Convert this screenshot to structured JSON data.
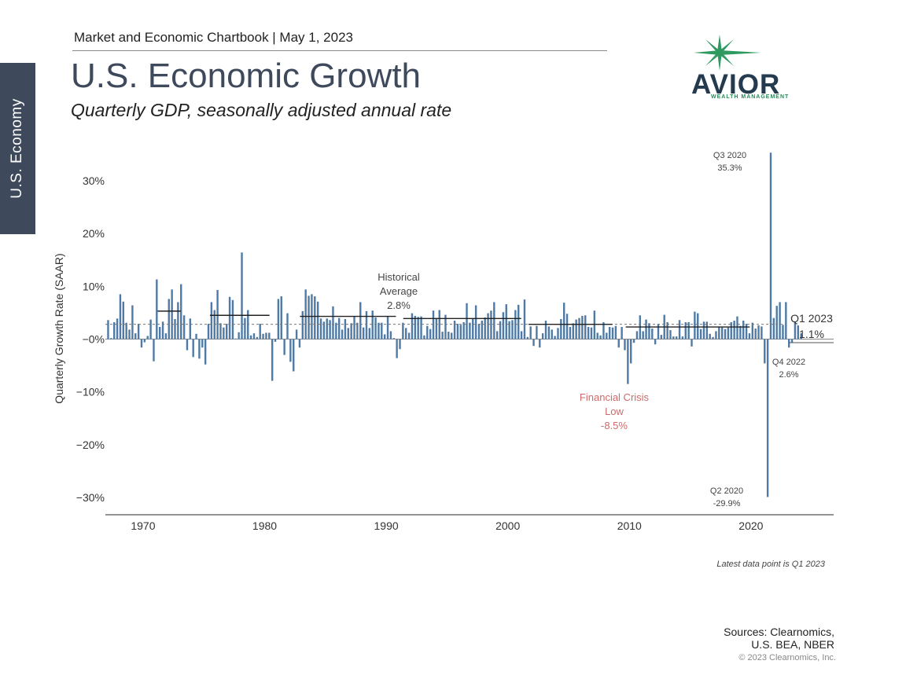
{
  "header": {
    "chartbook_line": "Market and Economic Chartbook | May 1, 2023",
    "title": "U.S. Economic Growth",
    "subtitle": "Quarterly GDP, seasonally adjusted annual rate"
  },
  "side_tab": {
    "label": "U.S. Economy"
  },
  "logo": {
    "word": "AVIOR",
    "sub": "WEALTH MANAGEMENT",
    "colors": {
      "star": "#2e9a60",
      "text": "#233a4f"
    }
  },
  "footer": {
    "sources_line1": "Sources: Clearnomics,",
    "sources_line2": "U.S. BEA, NBER",
    "copyright": "© 2023 Clearnomics, Inc."
  },
  "chart_data": {
    "type": "bar",
    "ylabel": "Quarterly Growth Rate (SAAR)",
    "xlabel": "",
    "ylim": [
      -34,
      34
    ],
    "xlim": [
      1966.9,
      2026.8
    ],
    "yticks": [
      {
        "value": 30,
        "label": "30%"
      },
      {
        "value": 20,
        "label": "20%"
      },
      {
        "value": 10,
        "label": "10%"
      },
      {
        "value": 0,
        "label": "−0%"
      },
      {
        "value": -10,
        "label": "−10%"
      },
      {
        "value": -20,
        "label": "−20%"
      },
      {
        "value": -30,
        "label": "−30%"
      }
    ],
    "xticks": [
      1970,
      1980,
      1990,
      2000,
      2010,
      2020
    ],
    "start_year": 1967,
    "colors": {
      "bar": "#4f7aa6",
      "avg_line": "#777777",
      "decade_avg": "#222222",
      "crisis_text": "#d06a6a",
      "label_text": "#444444"
    },
    "historical_average": 2.8,
    "values": [
      3.6,
      0.2,
      3.2,
      3.9,
      8.5,
      7.1,
      3.1,
      1.8,
      6.4,
      1.1,
      2.9,
      -1.6,
      -0.6,
      0.6,
      3.7,
      -4.2,
      11.3,
      2.3,
      3.3,
      1.1,
      7.6,
      9.4,
      3.8,
      7.0,
      10.4,
      4.5,
      -2.1,
      3.9,
      -3.4,
      1.0,
      -3.7,
      -1.6,
      -4.8,
      2.9,
      7.0,
      5.5,
      9.3,
      3.0,
      2.2,
      2.9,
      8.0,
      7.4,
      0.1,
      1.3,
      16.4,
      4.0,
      5.5,
      0.7,
      1.1,
      0.4,
      2.9,
      1.0,
      1.2,
      1.2,
      -7.9,
      -0.5,
      7.6,
      8.1,
      -3.0,
      4.9,
      -4.3,
      -6.1,
      1.8,
      -1.6,
      5.3,
      9.4,
      8.2,
      8.5,
      8.1,
      7.1,
      3.9,
      3.3,
      3.9,
      3.6,
      6.2,
      3.1,
      4.0,
      1.8,
      3.8,
      2.1,
      3.0,
      4.3,
      3.1,
      7.0,
      2.2,
      5.3,
      2.1,
      5.4,
      4.1,
      3.1,
      3.1,
      0.9,
      4.4,
      1.5,
      0.2,
      -3.6,
      -1.9,
      3.1,
      2.1,
      1.2,
      4.9,
      4.4,
      4.2,
      4.3,
      0.7,
      2.5,
      1.9,
      5.4,
      4.0,
      5.5,
      1.4,
      4.6,
      1.4,
      1.2,
      3.5,
      2.9,
      2.7,
      3.2,
      6.8,
      3.1,
      3.9,
      6.4,
      2.9,
      3.5,
      4.1,
      4.9,
      5.4,
      7.0,
      1.5,
      3.4,
      5.1,
      6.6,
      3.4,
      3.6,
      5.5,
      6.5,
      1.5,
      7.5,
      0.4,
      2.4,
      -1.3,
      2.5,
      -1.6,
      1.1,
      3.5,
      2.4,
      1.8,
      0.6,
      2.1,
      3.8,
      6.9,
      4.8,
      2.3,
      3.0,
      3.7,
      4.0,
      4.4,
      4.5,
      2.3,
      2.2,
      5.4,
      1.2,
      0.7,
      3.2,
      1.2,
      2.3,
      2.2,
      2.5,
      -1.6,
      2.3,
      -2.1,
      -8.5,
      -4.6,
      -0.7,
      1.5,
      4.5,
      1.5,
      3.7,
      3.0,
      2.0,
      -1.0,
      2.9,
      0.8,
      4.6,
      3.2,
      1.7,
      0.5,
      0.5,
      3.6,
      0.5,
      3.2,
      3.2,
      -1.4,
      5.2,
      4.9,
      1.9,
      3.3,
      3.3,
      1.0,
      0.4,
      1.5,
      2.3,
      2.2,
      1.9,
      2.2,
      3.2,
      3.5,
      4.3,
      2.5,
      3.5,
      2.9,
      1.1,
      3.1,
      2.0,
      2.6,
      2.4,
      -4.6,
      -29.9,
      35.3,
      4.0,
      6.3,
      7.0,
      2.7,
      7.0,
      -1.6,
      -0.6,
      3.2,
      2.6,
      1.1
    ],
    "decade_averages": [
      {
        "from": 1971.2,
        "to": 1973.1,
        "value": 5.3
      },
      {
        "from": 1975.5,
        "to": 1980.4,
        "value": 4.5
      },
      {
        "from": 1982.9,
        "to": 1990.8,
        "value": 4.3
      },
      {
        "from": 1991.4,
        "to": 2001.1,
        "value": 3.9
      },
      {
        "from": 2001.7,
        "to": 2008.6,
        "value": 2.8
      },
      {
        "from": 2009.7,
        "to": 2019.9,
        "value": 2.3
      }
    ],
    "annotations": {
      "hist_avg_l1": "Historical",
      "hist_avg_l2": "Average",
      "hist_avg_l3": "2.8%",
      "crisis_l1": "Financial Crisis",
      "crisis_l2": "Low",
      "crisis_l3": "-8.5%",
      "q3_2020_l1": "Q3 2020",
      "q3_2020_l2": "35.3%",
      "q2_2020_l1": "Q2 2020",
      "q2_2020_l2": "-29.9%",
      "q1_2023_l1": "Q1 2023",
      "q1_2023_l2": "1.1%",
      "q4_2022_l1": "Q4 2022",
      "q4_2022_l2": "2.6%",
      "latest_note": "Latest data point is Q1 2023"
    }
  }
}
